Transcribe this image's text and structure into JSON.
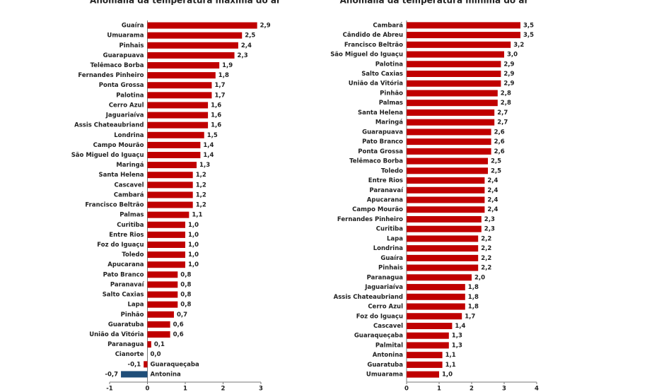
{
  "chart_data": [
    {
      "type": "barh",
      "title": "Anomalia da temperatura máxima do ar",
      "categories": [
        "Guaíra",
        "Umuarama",
        "Pinhais",
        "Guarapuava",
        "Telêmaco Borba",
        "Fernandes Pinheiro",
        "Ponta Grossa",
        "Palotina",
        "Cerro   Azul",
        "Jaguariaíva",
        "Assis  Chateaubriand",
        "Londrina",
        "Campo Mourão",
        "São Miguel do Iguaçu",
        "Maringá",
        "Santa  Helena",
        "Cascavel",
        "Cambará",
        "Francisco  Beltrão",
        "Palmas",
        "Curitiba",
        "Entre Rios",
        "Foz do Iguaçu",
        "Toledo",
        "Apucarana",
        "Pato Branco",
        "Paranavaí",
        "Salto Caxias",
        "Lapa",
        "Pinhão",
        "Guaratuba",
        "União da Vitória",
        "Paranagua",
        "Cianorte",
        "Guaraqueçaba",
        "Antonina"
      ],
      "values": [
        2.9,
        2.5,
        2.4,
        2.3,
        1.9,
        1.8,
        1.7,
        1.7,
        1.6,
        1.6,
        1.6,
        1.5,
        1.4,
        1.4,
        1.3,
        1.2,
        1.2,
        1.2,
        1.2,
        1.1,
        1.0,
        1.0,
        1.0,
        1.0,
        1.0,
        0.8,
        0.8,
        0.8,
        0.8,
        0.7,
        0.6,
        0.6,
        0.1,
        0.0,
        -0.1,
        -0.7
      ],
      "value_labels": [
        "2,9",
        "2,5",
        "2,4",
        "2,3",
        "1,9",
        "1,8",
        "1,7",
        "1,7",
        "1,6",
        "1,6",
        "1,6",
        "1,5",
        "1,4",
        "1,4",
        "1,3",
        "1,2",
        "1,2",
        "1,2",
        "1,2",
        "1,1",
        "1,0",
        "1,0",
        "1,0",
        "1,0",
        "1,0",
        "0,8",
        "0,8",
        "0,8",
        "0,8",
        "0,7",
        "0,6",
        "0,6",
        "0,1",
        "0,0",
        "-0,1",
        "-0,7"
      ],
      "colors": [
        "#c00000",
        "#c00000",
        "#c00000",
        "#c00000",
        "#c00000",
        "#c00000",
        "#c00000",
        "#c00000",
        "#c00000",
        "#c00000",
        "#c00000",
        "#c00000",
        "#c00000",
        "#c00000",
        "#c00000",
        "#c00000",
        "#c00000",
        "#c00000",
        "#c00000",
        "#c00000",
        "#c00000",
        "#c00000",
        "#c00000",
        "#c00000",
        "#c00000",
        "#c00000",
        "#c00000",
        "#c00000",
        "#c00000",
        "#c00000",
        "#c00000",
        "#c00000",
        "#c00000",
        "#c00000",
        "#c00000",
        "#1f4e79"
      ],
      "xlim": [
        -1,
        3
      ],
      "xticks": [
        -1,
        0,
        1,
        2,
        3
      ]
    },
    {
      "type": "barh",
      "title": "Anomalia da temperatura mínima do ar",
      "categories": [
        "Cambará",
        "Cândido de Abreu",
        "Francisco    Beltrão",
        "São Miguel do Iguaçu",
        "Palotina",
        "Salto Caxias",
        "União da Vitória",
        "Pinhão",
        "Palmas",
        "Santa Helena",
        "Maringá",
        "Guarapuava",
        "Pato Branco",
        "Ponta Grossa",
        "Telêmaco Borba",
        "Toledo",
        "Entre Rios",
        "Paranavaí",
        "Apucarana",
        "Campo Mourão",
        "Fernandes  Pinheiro",
        "Curitiba",
        "Lapa",
        "Londrina",
        "Guaíra",
        "Pinhais",
        "Paranagua",
        "Jaguariaíva",
        "Assis  Chateaubriand",
        "Cerro Azul",
        "Foz do Iguaçu",
        "Cascavel",
        "Guaraqueçaba",
        "Palmital",
        "Antonina",
        "Guaratuba",
        "Umuarama"
      ],
      "values": [
        3.5,
        3.5,
        3.2,
        3.0,
        2.9,
        2.9,
        2.9,
        2.8,
        2.8,
        2.7,
        2.7,
        2.6,
        2.6,
        2.6,
        2.5,
        2.5,
        2.4,
        2.4,
        2.4,
        2.4,
        2.3,
        2.3,
        2.2,
        2.2,
        2.2,
        2.2,
        2.0,
        1.8,
        1.8,
        1.8,
        1.7,
        1.4,
        1.3,
        1.3,
        1.1,
        1.1,
        1.0
      ],
      "value_labels": [
        "3,5",
        "3,5",
        "3,2",
        "3,0",
        "2,9",
        "2,9",
        "2,9",
        "2,8",
        "2,8",
        "2,7",
        "2,7",
        "2,6",
        "2,6",
        "2,6",
        "2,5",
        "2,5",
        "2,4",
        "2,4",
        "2,4",
        "2,4",
        "2,3",
        "2,3",
        "2,2",
        "2,2",
        "2,2",
        "2,2",
        "2,0",
        "1,8",
        "1,8",
        "1,8",
        "1,7",
        "1,4",
        "1,3",
        "1,3",
        "1,1",
        "1,1",
        "1,0"
      ],
      "color": "#c00000",
      "xlim": [
        0,
        4
      ],
      "xticks": [
        0,
        1,
        2,
        3,
        4
      ]
    }
  ]
}
